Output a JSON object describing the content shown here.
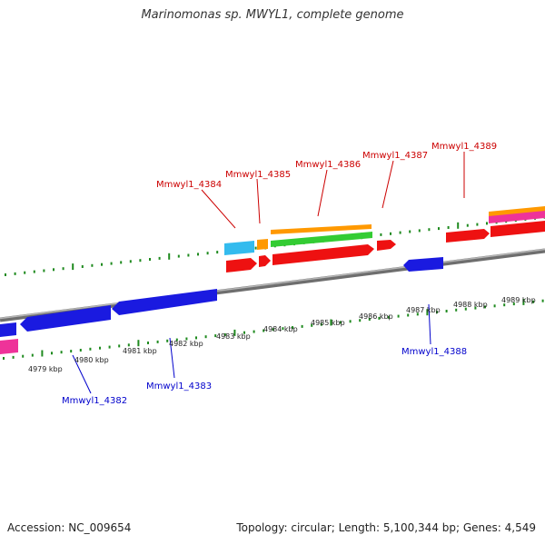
{
  "title": "Marinomonas sp. MWYL1, complete genome",
  "footer": {
    "accession": "Accession: NC_009654",
    "summary": "Topology: circular; Length: 5,100,344 bp; Genes: 4,549"
  },
  "colors": {
    "backbone": "#8c8c8c",
    "tick": "#1f8a1f",
    "upper_label": "#cc0000",
    "lower_label": "#0000cc",
    "cds_red": "#ee1111",
    "cds_blue": "#1a1ae0",
    "cds_green": "#33cc33",
    "cds_orange": "#ff9900",
    "cds_cyan": "#33bbee",
    "cds_pink": "#ee3399"
  },
  "kbp_labels": [
    "4979 kbp",
    "4980 kbp",
    "4981 kbp",
    "4982 kbp",
    "4983 kbp",
    "4984 kbp",
    "4985 kbp",
    "4986 kbp",
    "4987 kbp",
    "4988 kbp",
    "4989 kbp"
  ],
  "upper_genes": [
    "Mmwyl1_4384",
    "Mmwyl1_4385",
    "Mmwyl1_4386",
    "Mmwyl1_4387",
    "Mmwyl1_4389"
  ],
  "lower_genes": [
    "Mmwyl1_4382",
    "Mmwyl1_4383",
    "Mmwyl1_4388"
  ]
}
